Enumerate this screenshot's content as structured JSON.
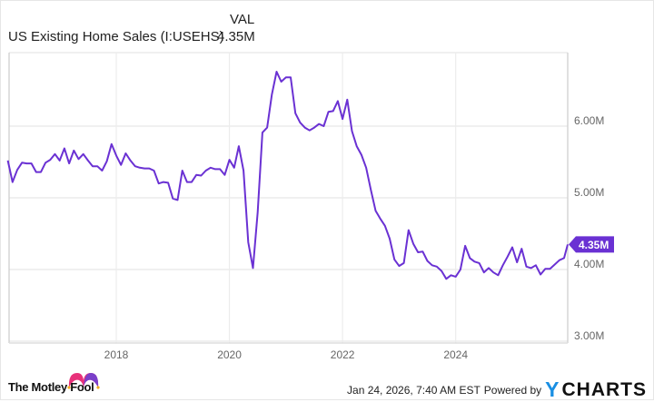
{
  "legend": {
    "header": "VAL",
    "series_name": "US Existing Home Sales (I:USEHS)",
    "series_value": "4.35M"
  },
  "footer": {
    "brand": "The Motley Fool",
    "timestamp": "Jan 24, 2026, 7:40 AM EST",
    "powered_by": "Powered by",
    "provider": "YCHARTS"
  },
  "colors": {
    "line": "#6a31d3",
    "tag": "#6a31d3",
    "grid": "#ececec",
    "axis": "#cccccc",
    "ycharts_y": "#1a8fe3"
  },
  "chart_data": {
    "type": "line",
    "title": "US Existing Home Sales (I:USEHS)",
    "xlabel": "",
    "ylabel": "",
    "ylim": [
      2.9,
      6.98
    ],
    "y_ticks": [
      "3.00M",
      "4.00M",
      "5.00M",
      "6.00M"
    ],
    "y_tick_values": [
      3.0,
      4.0,
      5.0,
      6.0
    ],
    "x_ticks": [
      "2018",
      "2020",
      "2022",
      "2024"
    ],
    "grid": true,
    "last_value_label": "4.35M",
    "start": "2016-02",
    "frequency": "monthly",
    "series": [
      {
        "name": "US Existing Home Sales",
        "unit": "M",
        "values": [
          5.52,
          5.22,
          5.39,
          5.49,
          5.48,
          5.48,
          5.36,
          5.36,
          5.49,
          5.53,
          5.61,
          5.52,
          5.69,
          5.48,
          5.66,
          5.54,
          5.61,
          5.52,
          5.44,
          5.44,
          5.38,
          5.51,
          5.75,
          5.59,
          5.46,
          5.62,
          5.52,
          5.44,
          5.42,
          5.41,
          5.41,
          5.38,
          5.2,
          5.22,
          5.21,
          4.99,
          4.97,
          5.38,
          5.22,
          5.22,
          5.32,
          5.31,
          5.38,
          5.42,
          5.4,
          5.4,
          5.32,
          5.53,
          5.42,
          5.72,
          5.38,
          4.38,
          4.02,
          4.8,
          5.91,
          5.98,
          6.44,
          6.76,
          6.62,
          6.68,
          6.68,
          6.18,
          6.05,
          5.98,
          5.94,
          5.98,
          6.03,
          6.0,
          6.2,
          6.21,
          6.35,
          6.1,
          6.37,
          5.93,
          5.72,
          5.6,
          5.42,
          5.11,
          4.82,
          4.71,
          4.61,
          4.43,
          4.14,
          4.05,
          4.09,
          4.55,
          4.36,
          4.24,
          4.25,
          4.12,
          4.06,
          4.04,
          3.98,
          3.87,
          3.92,
          3.9,
          4.0,
          4.33,
          4.16,
          4.11,
          4.09,
          3.96,
          4.02,
          3.96,
          3.92,
          4.06,
          4.18,
          4.31,
          4.1,
          4.29,
          4.04,
          4.02,
          4.06,
          3.93,
          4.01,
          4.01,
          4.07,
          4.13,
          4.16,
          4.35
        ]
      }
    ]
  }
}
